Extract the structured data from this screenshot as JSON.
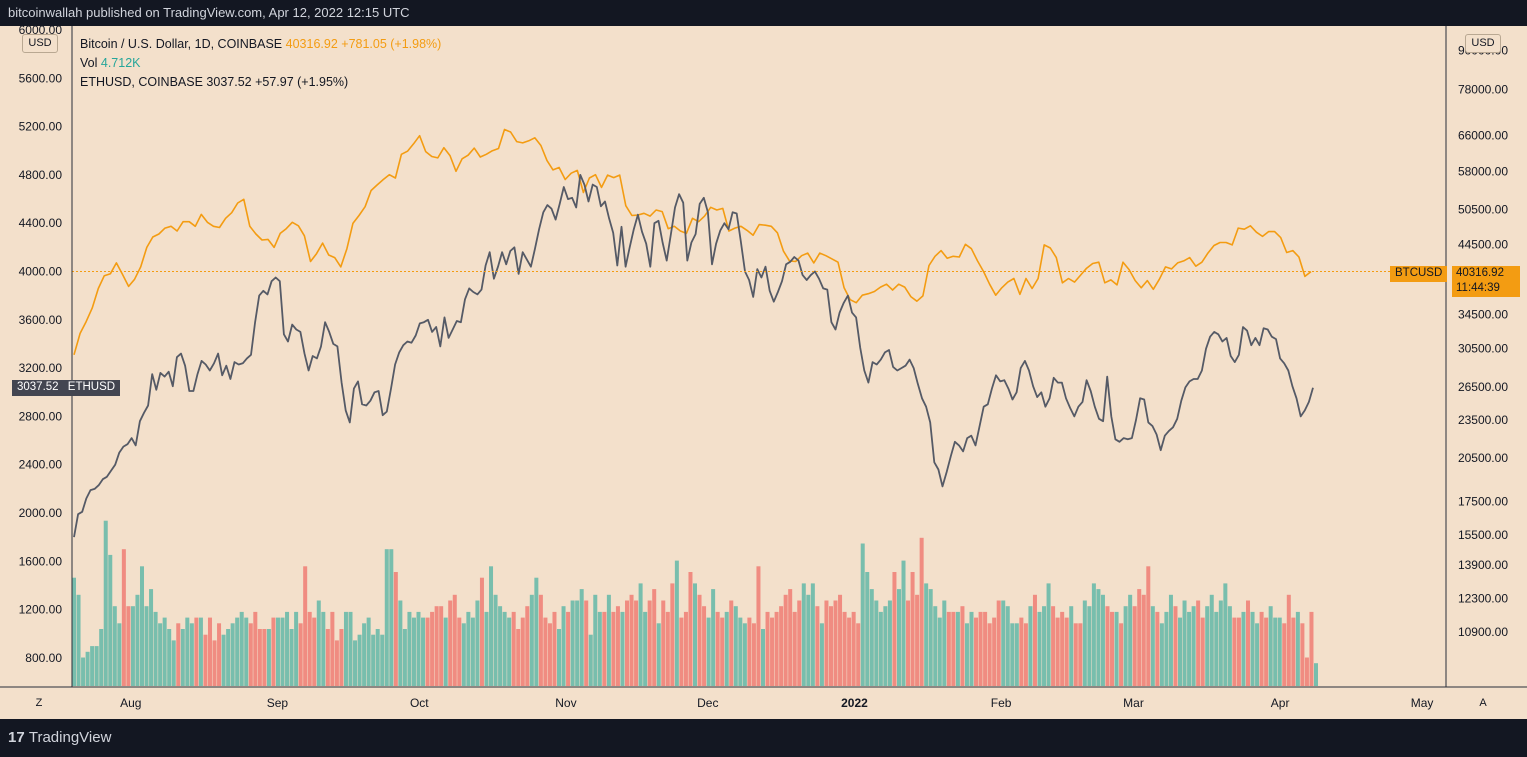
{
  "header": {
    "text": "bitcoinwallah published on TradingView.com, Apr 12, 2022 12:15 UTC"
  },
  "legend": {
    "line1_name": "Bitcoin / U.S. Dollar, 1D, COINBASE",
    "line1_price": "40316.92",
    "line1_change": "+781.05 (+1.98%)",
    "line2_name": "Vol",
    "line2_value": "4.712K",
    "line3": "ETHUSD, COINBASE  3037.52  +57.97 (+1.95%)"
  },
  "left_unit": "USD",
  "right_unit": "USD",
  "eth_tag": {
    "value": "3037.52",
    "name": "ETHUSD"
  },
  "btc_tag": {
    "name": "BTCUSD",
    "price": "40316.92",
    "countdown": "11:44:39"
  },
  "bottom_left_button": "Z",
  "bottom_right_button": "A",
  "footer": {
    "logo_mark": "17",
    "logo_text": "TradingView"
  },
  "chart_data": {
    "type": "line",
    "left_axis": {
      "ticks": [
        "6000.00",
        "5600.00",
        "5200.00",
        "4800.00",
        "4400.00",
        "4000.00",
        "3600.00",
        "3200.00",
        "2800.00",
        "2400.00",
        "2000.00",
        "1600.00",
        "1200.00",
        "800.00"
      ],
      "range": [
        650,
        6000
      ]
    },
    "right_axis": {
      "ticks": [
        "90000.00",
        "78000.00",
        "66000.00",
        "58000.00",
        "50500.00",
        "44500.00",
        "40316.92",
        "34500.00",
        "30500.00",
        "26500.00",
        "23500.00",
        "20500.00",
        "17500.00",
        "15500.00",
        "13900.00",
        "12300.00",
        "10900.00"
      ],
      "scale": "log"
    },
    "x_ticks": [
      "Aug",
      "Sep",
      "Oct",
      "Nov",
      "Dec",
      "2022",
      "Feb",
      "Mar",
      "Apr",
      "May"
    ],
    "series": [
      {
        "name": "BTCUSD",
        "color": "#f39c12",
        "axis": "right",
        "x_start": "2021-07-20",
        "x_end": "2022-04-12",
        "values": [
          29800,
          32200,
          33600,
          35300,
          37900,
          39700,
          40000,
          41600,
          39900,
          38200,
          39200,
          41000,
          44000,
          45700,
          46200,
          47200,
          47500,
          46700,
          48300,
          48300,
          47500,
          49600,
          48200,
          47500,
          47300,
          48900,
          49900,
          51700,
          52400,
          47500,
          46200,
          45200,
          45300,
          44000,
          46300,
          47100,
          48200,
          47600,
          45900,
          41800,
          43000,
          44700,
          42800,
          42400,
          41000,
          43800,
          48000,
          49400,
          51000,
          54100,
          55200,
          56300,
          57300,
          56600,
          61700,
          62400,
          64100,
          66000,
          62300,
          61200,
          60900,
          63200,
          61400,
          58000,
          60700,
          61500,
          63100,
          61100,
          61700,
          62500,
          63000,
          67500,
          66900,
          64600,
          64300,
          64800,
          65500,
          63700,
          60300,
          58300,
          58800,
          56300,
          57600,
          58200,
          53700,
          56600,
          57300,
          54700,
          57200,
          56700,
          57200,
          51200,
          49400,
          49500,
          49800,
          49300,
          50400,
          50100,
          47100,
          47500,
          46700,
          46300,
          48900,
          48300,
          49300,
          50900,
          50400,
          50700,
          46700,
          47200,
          47500,
          46800,
          46000,
          47800,
          47700,
          47500,
          46400,
          43400,
          41900,
          41800,
          42700,
          43100,
          41600,
          43100,
          42700,
          42200,
          41700,
          38000,
          36400,
          36000,
          37000,
          37200,
          37500,
          38100,
          38500,
          37700,
          38500,
          38100,
          36800,
          36200,
          36900,
          41200,
          42600,
          43500,
          42300,
          42600,
          42500,
          44500,
          43800,
          41900,
          40300,
          38500,
          37000,
          38000,
          38800,
          39300,
          37100,
          39300,
          37900,
          39300,
          44400,
          43900,
          42400,
          38700,
          39300,
          38800,
          39800,
          40800,
          41500,
          41700,
          38700,
          39100,
          38400,
          41700,
          40600,
          39000,
          38000,
          39000,
          37800,
          39200,
          41000,
          40700,
          41600,
          41900,
          42400,
          41100,
          41700,
          43100,
          44300,
          44800,
          44800,
          44400,
          47200,
          47000,
          47600,
          46500,
          45800,
          46600,
          46600,
          45600,
          43200,
          43500,
          42500,
          39600,
          40300
        ],
        "last_price": 40316.92
      },
      {
        "name": "ETHUSD",
        "color": "#555a66",
        "axis": "left",
        "x_start": "2021-07-20",
        "x_end": "2022-04-12",
        "values": [
          1800,
          1990,
          2010,
          2120,
          2190,
          2200,
          2230,
          2280,
          2300,
          2350,
          2400,
          2500,
          2550,
          2570,
          2620,
          2560,
          2760,
          2830,
          2890,
          3150,
          3020,
          3160,
          3130,
          3170,
          3050,
          3290,
          3320,
          3220,
          3010,
          3010,
          3150,
          3260,
          3230,
          3180,
          3240,
          3320,
          3140,
          3220,
          3110,
          3250,
          3230,
          3240,
          3280,
          3310,
          3580,
          3800,
          3840,
          3810,
          3920,
          3950,
          3920,
          3480,
          3420,
          3560,
          3520,
          3500,
          3320,
          3180,
          3300,
          3280,
          3380,
          3580,
          3500,
          3400,
          3380,
          3080,
          2850,
          2750,
          3030,
          3090,
          2900,
          2890,
          2930,
          3000,
          3010,
          2810,
          2840,
          3030,
          3230,
          3330,
          3390,
          3420,
          3410,
          3470,
          3570,
          3580,
          3600,
          3500,
          3540,
          3380,
          3620,
          3450,
          3520,
          3590,
          3580,
          3770,
          3860,
          3830,
          3810,
          3850,
          4050,
          4160,
          3940,
          4040,
          4160,
          4060,
          4170,
          4200,
          3980,
          4160,
          4100,
          4040,
          4190,
          4350,
          4490,
          4550,
          4520,
          4430,
          4560,
          4700,
          4600,
          4610,
          4530,
          4800,
          4720,
          4580,
          4720,
          4700,
          4540,
          4580,
          4440,
          4320,
          4050,
          4370,
          4040,
          4200,
          4350,
          4470,
          4330,
          4230,
          4040,
          4400,
          4420,
          4240,
          4090,
          4310,
          4530,
          4640,
          4570,
          4090,
          4240,
          4310,
          4560,
          4610,
          4490,
          4060,
          4230,
          4340,
          4400,
          4350,
          4490,
          4480,
          4250,
          4000,
          3930,
          3790,
          4020,
          3950,
          4040,
          3840,
          3750,
          3830,
          3920,
          4060,
          4080,
          4120,
          4090,
          3970,
          3930,
          3970,
          4000,
          3940,
          3860,
          3850,
          3580,
          3520,
          3660,
          3740,
          3800,
          3660,
          3620,
          3370,
          3180,
          3080,
          3250,
          3230,
          3270,
          3330,
          3350,
          3210,
          3180,
          3200,
          3220,
          3270,
          3200,
          3070,
          2950,
          2880,
          2750,
          2420,
          2360,
          2220,
          2340,
          2470,
          2590,
          2560,
          2510,
          2620,
          2640,
          2560,
          2720,
          2880,
          2900,
          3030,
          3140,
          3090,
          3100,
          3030,
          2940,
          3000,
          3200,
          3260,
          3180,
          3050,
          2960,
          3000,
          2880,
          2950,
          3120,
          3080,
          3080,
          2950,
          2870,
          2800,
          2880,
          2920,
          3100,
          3010,
          2880,
          2780,
          2760,
          3130,
          2800,
          2610,
          2590,
          2620,
          2610,
          2620,
          2770,
          2950,
          2940,
          2750,
          2720,
          2650,
          2520,
          2640,
          2680,
          2710,
          2780,
          2930,
          3040,
          3090,
          3110,
          3110,
          3180,
          3360,
          3460,
          3500,
          3480,
          3420,
          3450,
          3300,
          3250,
          3310,
          3540,
          3510,
          3390,
          3450,
          3390,
          3530,
          3520,
          3460,
          3440,
          3280,
          3240,
          3180,
          3050,
          2950,
          2800,
          2850,
          2920,
          3037.52
        ],
        "last_price": 3037.52
      },
      {
        "name": "Vol",
        "type": "histogram",
        "color_up": "#26a69a",
        "color_down": "#ef5350",
        "values": [
          1.9,
          1.6,
          0.5,
          0.6,
          0.7,
          0.7,
          1.0,
          2.9,
          2.3,
          1.4,
          1.1,
          2.4,
          1.4,
          1.4,
          1.6,
          2.1,
          1.4,
          1.7,
          1.3,
          1.1,
          1.2,
          1.0,
          0.8,
          1.1,
          1.0,
          1.2,
          1.1,
          1.2,
          1.2,
          0.9,
          1.2,
          0.8,
          1.1,
          0.9,
          1.0,
          1.1,
          1.2,
          1.3,
          1.2,
          1.1,
          1.3,
          1.0,
          1.0,
          1.0,
          1.2,
          1.2,
          1.2,
          1.3,
          1.0,
          1.3,
          1.1,
          2.1,
          1.3,
          1.2,
          1.5,
          1.3,
          1.0,
          1.3,
          0.8,
          1.0,
          1.3,
          1.3,
          0.8,
          0.9,
          1.1,
          1.2,
          0.9,
          1.0,
          0.9,
          2.4,
          2.4,
          2.0,
          1.5,
          1.0,
          1.3,
          1.2,
          1.3,
          1.2,
          1.2,
          1.3,
          1.4,
          1.4,
          1.2,
          1.5,
          1.6,
          1.2,
          1.1,
          1.3,
          1.2,
          1.5,
          1.9,
          1.3,
          2.1,
          1.6,
          1.4,
          1.3,
          1.2,
          1.3,
          1.0,
          1.2,
          1.4,
          1.6,
          1.9,
          1.6,
          1.2,
          1.1,
          1.3,
          1.0,
          1.4,
          1.3,
          1.5,
          1.5,
          1.7,
          1.5,
          0.9,
          1.6,
          1.3,
          1.3,
          1.6,
          1.3,
          1.4,
          1.3,
          1.5,
          1.6,
          1.5,
          1.8,
          1.3,
          1.5,
          1.7,
          1.1,
          1.5,
          1.3,
          1.8,
          2.2,
          1.2,
          1.3,
          2.0,
          1.8,
          1.6,
          1.4,
          1.2,
          1.7,
          1.3,
          1.2,
          1.3,
          1.5,
          1.4,
          1.2,
          1.1,
          1.2,
          1.1,
          2.1,
          1.0,
          1.3,
          1.2,
          1.3,
          1.4,
          1.6,
          1.7,
          1.3,
          1.5,
          1.8,
          1.6,
          1.8,
          1.4,
          1.1,
          1.5,
          1.4,
          1.5,
          1.6,
          1.3,
          1.2,
          1.3,
          1.1,
          2.5,
          2.0,
          1.7,
          1.5,
          1.3,
          1.4,
          1.5,
          2.0,
          1.7,
          2.2,
          1.5,
          2.0,
          1.6,
          2.6,
          1.8,
          1.7,
          1.4,
          1.2,
          1.5,
          1.3,
          1.3,
          1.3,
          1.4,
          1.1,
          1.3,
          1.2,
          1.3,
          1.3,
          1.1,
          1.2,
          1.5,
          1.5,
          1.4,
          1.1,
          1.1,
          1.2,
          1.1,
          1.4,
          1.6,
          1.3,
          1.4,
          1.8,
          1.4,
          1.2,
          1.3,
          1.2,
          1.4,
          1.1,
          1.1,
          1.5,
          1.4,
          1.8,
          1.7,
          1.6,
          1.4,
          1.3,
          1.3,
          1.1,
          1.4,
          1.6,
          1.4,
          1.7,
          1.6,
          2.1,
          1.4,
          1.3,
          1.1,
          1.3,
          1.6,
          1.4,
          1.2,
          1.5,
          1.3,
          1.4,
          1.5,
          1.2,
          1.4,
          1.6,
          1.3,
          1.5,
          1.8,
          1.4,
          1.2,
          1.2,
          1.3,
          1.5,
          1.3,
          1.1,
          1.3,
          1.2,
          1.4,
          1.2,
          1.2,
          1.1,
          1.6,
          1.2,
          1.3,
          1.1,
          0.5,
          1.3,
          0.4
        ]
      }
    ]
  }
}
